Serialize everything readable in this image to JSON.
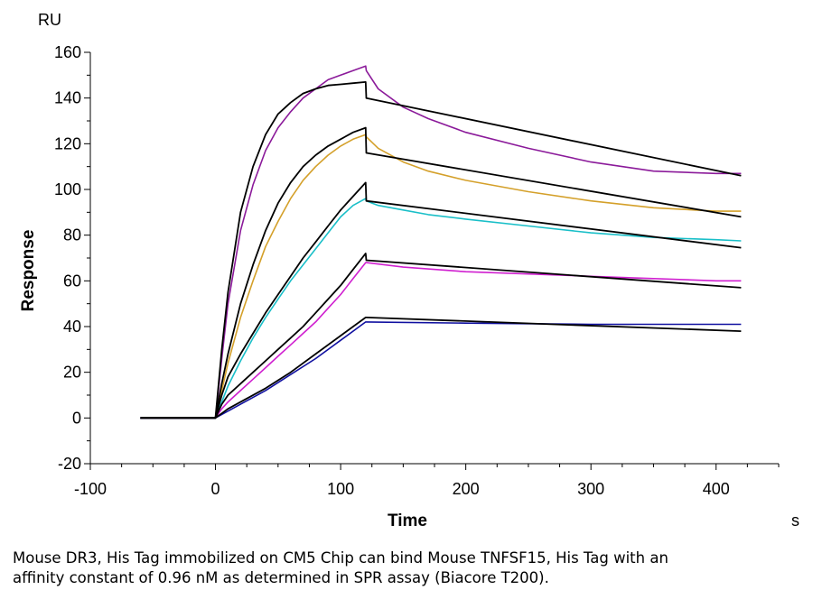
{
  "chart_data": {
    "type": "line",
    "title": "",
    "xlabel": "Time",
    "ylabel": "Response",
    "x_unit": "s",
    "y_unit": "RU",
    "xlim": [
      -100,
      450
    ],
    "ylim": [
      -20,
      160
    ],
    "x_ticks": [
      -100,
      0,
      100,
      200,
      300,
      400
    ],
    "y_ticks": [
      -20,
      0,
      20,
      40,
      60,
      80,
      100,
      120,
      140,
      160
    ],
    "grid": false,
    "legend": "none",
    "series": [
      {
        "color": "#8B1A9A",
        "x": [
          -60,
          0,
          2,
          5,
          10,
          20,
          30,
          40,
          50,
          60,
          70,
          80,
          90,
          100,
          110,
          120,
          120.5,
          130,
          150,
          170,
          200,
          250,
          300,
          350,
          400,
          420
        ],
        "y": [
          0,
          0,
          10,
          26,
          50,
          82,
          102,
          117,
          127,
          134,
          140,
          144,
          148,
          150,
          152,
          154,
          152,
          144,
          136,
          131,
          125,
          118,
          112,
          108,
          107,
          107
        ]
      },
      {
        "color": "#000000",
        "x": [
          -60,
          0,
          2,
          5,
          10,
          20,
          30,
          40,
          50,
          60,
          70,
          80,
          90,
          100,
          110,
          120,
          120.5,
          420
        ],
        "y": [
          0,
          0,
          12,
          30,
          55,
          90,
          110,
          124,
          133,
          138,
          142,
          144,
          145.5,
          146,
          146.5,
          147,
          140,
          106
        ]
      },
      {
        "color": "#D4A02A",
        "x": [
          -60,
          0,
          5,
          10,
          20,
          30,
          40,
          50,
          60,
          70,
          80,
          90,
          100,
          110,
          120,
          120.5,
          130,
          150,
          170,
          200,
          250,
          300,
          350,
          400,
          420
        ],
        "y": [
          0,
          0,
          12,
          24,
          44,
          60,
          75,
          86,
          96,
          104,
          110,
          115,
          119,
          122,
          124,
          123,
          118,
          112,
          108,
          104,
          99,
          95,
          92,
          90.5,
          90.5
        ]
      },
      {
        "color": "#000000",
        "x": [
          -60,
          0,
          5,
          10,
          20,
          30,
          40,
          50,
          60,
          70,
          80,
          90,
          100,
          110,
          120,
          120.5,
          420
        ],
        "y": [
          0,
          0,
          15,
          28,
          50,
          67,
          82,
          94,
          103,
          110,
          115,
          119,
          122,
          125,
          127,
          116,
          88
        ]
      },
      {
        "color": "#1ABFC8",
        "x": [
          -60,
          0,
          5,
          10,
          20,
          30,
          40,
          50,
          60,
          70,
          80,
          90,
          100,
          110,
          120,
          120.5,
          130,
          150,
          170,
          200,
          250,
          300,
          350,
          400,
          420
        ],
        "y": [
          0,
          0,
          7,
          14,
          25,
          35,
          44,
          52,
          60,
          67,
          74,
          81,
          88,
          93,
          96,
          95,
          93,
          91,
          89,
          87,
          84,
          81,
          79,
          78,
          77.5
        ]
      },
      {
        "color": "#000000",
        "x": [
          -60,
          0,
          5,
          10,
          20,
          30,
          40,
          50,
          60,
          70,
          80,
          90,
          100,
          110,
          120,
          120.5,
          420
        ],
        "y": [
          0,
          0,
          10,
          18,
          28,
          37,
          46,
          54,
          62,
          70,
          77,
          84,
          91,
          97,
          103,
          95,
          74.5
        ]
      },
      {
        "color": "#D020D0",
        "x": [
          -60,
          0,
          5,
          10,
          20,
          30,
          40,
          50,
          60,
          70,
          80,
          90,
          100,
          110,
          120,
          120.5,
          150,
          200,
          250,
          300,
          350,
          400,
          420
        ],
        "y": [
          0,
          0,
          4,
          7,
          12,
          17,
          22,
          27,
          32,
          37,
          42,
          48,
          54,
          61,
          68,
          68,
          66,
          64,
          63,
          62,
          61,
          60,
          60
        ]
      },
      {
        "color": "#000000",
        "x": [
          -60,
          0,
          5,
          10,
          20,
          30,
          40,
          50,
          60,
          70,
          80,
          90,
          100,
          110,
          120,
          120.5,
          420
        ],
        "y": [
          0,
          0,
          6,
          10,
          15,
          20,
          25,
          30,
          35,
          40,
          46,
          52,
          58,
          65,
          72,
          69,
          57
        ]
      },
      {
        "color": "#1010A0",
        "x": [
          -60,
          0,
          10,
          20,
          40,
          60,
          80,
          100,
          120,
          120.5,
          200,
          300,
          400,
          420
        ],
        "y": [
          0,
          0,
          3,
          6,
          12,
          19,
          26,
          34,
          42,
          42,
          41.5,
          41,
          41,
          41
        ]
      },
      {
        "color": "#000000",
        "x": [
          -60,
          0,
          10,
          20,
          40,
          60,
          80,
          100,
          120,
          120.5,
          420
        ],
        "y": [
          0,
          0,
          4,
          7,
          13,
          20,
          28,
          36,
          44,
          44,
          38
        ]
      }
    ]
  },
  "caption": {
    "line1": "Mouse DR3, His Tag immobilized on CM5 Chip can bind Mouse TNFSF15, His Tag with an",
    "line2": "affinity constant of 0.96 nM as determined in SPR assay (Biacore T200)."
  }
}
